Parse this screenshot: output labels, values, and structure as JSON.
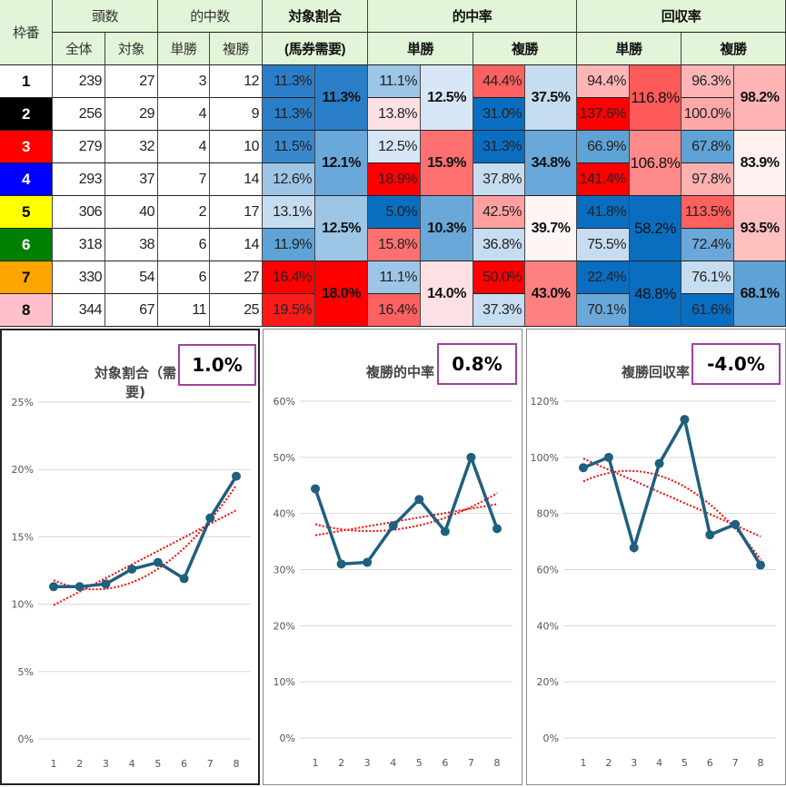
{
  "header": {
    "waku": "枠番",
    "tousu": "頭数",
    "zentai": "全体",
    "taisho": "対象",
    "tekichu_su": "的中数",
    "tan": "単勝",
    "fuku": "複勝",
    "taisho_wariai": "対象割合",
    "baken_juyo": "(馬券需要)",
    "tekichu_ritsu": "的中率",
    "kaishu_ritsu": "回収率"
  },
  "rows": [
    {
      "waku": "1",
      "bg": "#ffffff",
      "fg": "#000000",
      "zentai": "239",
      "taisho": "27",
      "tan_hit": "3",
      "fuku_hit": "12",
      "share": "11.3%",
      "tan_rate": "11.1%",
      "fuku_rate": "44.4%",
      "tan_ret": "94.4%",
      "fuku_ret": "96.3%"
    },
    {
      "waku": "2",
      "bg": "#000000",
      "fg": "#ffffff",
      "zentai": "256",
      "taisho": "29",
      "tan_hit": "4",
      "fuku_hit": "9",
      "share": "11.3%",
      "tan_rate": "13.8%",
      "fuku_rate": "31.0%",
      "tan_ret": "137.6%",
      "fuku_ret": "100.0%"
    },
    {
      "waku": "3",
      "bg": "#ff0000",
      "fg": "#ffffff",
      "zentai": "279",
      "taisho": "32",
      "tan_hit": "4",
      "fuku_hit": "10",
      "share": "11.5%",
      "tan_rate": "12.5%",
      "fuku_rate": "31.3%",
      "tan_ret": "66.9%",
      "fuku_ret": "67.8%"
    },
    {
      "waku": "4",
      "bg": "#0000ff",
      "fg": "#ffffff",
      "zentai": "293",
      "taisho": "37",
      "tan_hit": "7",
      "fuku_hit": "14",
      "share": "12.6%",
      "tan_rate": "18.9%",
      "fuku_rate": "37.8%",
      "tan_ret": "141.4%",
      "fuku_ret": "97.8%"
    },
    {
      "waku": "5",
      "bg": "#ffff00",
      "fg": "#000000",
      "zentai": "306",
      "taisho": "40",
      "tan_hit": "2",
      "fuku_hit": "17",
      "share": "13.1%",
      "tan_rate": "5.0%",
      "fuku_rate": "42.5%",
      "tan_ret": "41.8%",
      "fuku_ret": "113.5%"
    },
    {
      "waku": "6",
      "bg": "#008000",
      "fg": "#ffffff",
      "zentai": "318",
      "taisho": "38",
      "tan_hit": "6",
      "fuku_hit": "14",
      "share": "11.9%",
      "tan_rate": "15.8%",
      "fuku_rate": "36.8%",
      "tan_ret": "75.5%",
      "fuku_ret": "72.4%"
    },
    {
      "waku": "7",
      "bg": "#ffa500",
      "fg": "#000000",
      "zentai": "330",
      "taisho": "54",
      "tan_hit": "6",
      "fuku_hit": "27",
      "share": "16.4%",
      "tan_rate": "11.1%",
      "fuku_rate": "50.0%",
      "tan_ret": "22.4%",
      "fuku_ret": "76.1%"
    },
    {
      "waku": "8",
      "bg": "#ffc0cb",
      "fg": "#000000",
      "zentai": "344",
      "taisho": "67",
      "tan_hit": "11",
      "fuku_hit": "25",
      "share": "19.5%",
      "tan_rate": "16.4%",
      "fuku_rate": "37.3%",
      "tan_ret": "70.1%",
      "fuku_ret": "61.6%"
    }
  ],
  "pairs": [
    {
      "share": "11.3%",
      "tan_rate": "12.5%",
      "fuku_rate": "37.5%",
      "tan_ret": "116.8%",
      "fuku_ret": "98.2%"
    },
    {
      "share": "12.1%",
      "tan_rate": "15.9%",
      "fuku_rate": "34.8%",
      "tan_ret": "106.8%",
      "fuku_ret": "83.9%"
    },
    {
      "share": "12.5%",
      "tan_rate": "10.3%",
      "fuku_rate": "39.7%",
      "tan_ret": "58.2%",
      "fuku_ret": "93.5%"
    },
    {
      "share": "18.0%",
      "tan_rate": "14.0%",
      "fuku_rate": "43.0%",
      "tan_ret": "48.8%",
      "fuku_ret": "68.1%"
    }
  ],
  "colors": {
    "cells": {
      "share": [
        "#2a7ec8",
        "#2a7ec8",
        "#3a88cc",
        "#9cc5e6",
        "#c6dcf0",
        "#5ea2d6",
        "#ff0000",
        "#ff1a1a"
      ],
      "tan_rate": [
        "#9cc5e6",
        "#fde0e3",
        "#d6e6f5",
        "#ff0000",
        "#0a6ec0",
        "#ff7070",
        "#9cc5e6",
        "#ff6060"
      ],
      "fuku_rate": [
        "#ff6060",
        "#0a6ec0",
        "#0a6ec0",
        "#c6dcf0",
        "#ffa0a0",
        "#c6dcf0",
        "#ff0000",
        "#c6dcf0"
      ],
      "tan_ret": [
        "#ffb5b5",
        "#ff0000",
        "#5ea2d6",
        "#ff0000",
        "#0a6ec0",
        "#c6dcf0",
        "#0a6ec0",
        "#6aa8da"
      ],
      "fuku_ret": [
        "#ffb5b5",
        "#ffa8a8",
        "#5ea2d6",
        "#ffb0b0",
        "#ff6060",
        "#6aa8da",
        "#c6dcf0",
        "#0a6ec0"
      ]
    },
    "pairs": {
      "share": [
        "#2a7ec8",
        "#6aa8da",
        "#9cc5e6",
        "#ff0000"
      ],
      "tan_rate": [
        "#d6e6f5",
        "#ff7070",
        "#6aa8da",
        "#fde0e3"
      ],
      "fuku_rate": [
        "#c6dcf0",
        "#6aa8da",
        "#fff5f5",
        "#ff8080"
      ],
      "tan_ret": [
        "#ff5a5a",
        "#ff8a8a",
        "#0a6ec0",
        "#0a6ec0"
      ],
      "fuku_ret": [
        "#ffb5b5",
        "#fff0f0",
        "#ffc0c0",
        "#5ea2d6"
      ]
    },
    "line": "#1f5f7f",
    "trend": "#ff0000",
    "badge_border": "#a040a0"
  },
  "chart_data": [
    {
      "type": "line",
      "title": "対象割合（需要)",
      "badge": "1.0%",
      "categories": [
        "1",
        "2",
        "3",
        "4",
        "5",
        "6",
        "7",
        "8"
      ],
      "values": [
        11.3,
        11.3,
        11.5,
        12.6,
        13.1,
        11.9,
        16.4,
        19.5
      ],
      "ylim": [
        0,
        25
      ],
      "yticks": [
        "0%",
        "5%",
        "10%",
        "15%",
        "20%",
        "25%"
      ],
      "trendlines": [
        "linear",
        "polynomial"
      ],
      "grid": true
    },
    {
      "type": "line",
      "title": "複勝的中率",
      "badge": "0.8%",
      "categories": [
        "1",
        "2",
        "3",
        "4",
        "5",
        "6",
        "7",
        "8"
      ],
      "values": [
        44.4,
        31.0,
        31.3,
        37.8,
        42.5,
        36.8,
        50.0,
        37.3
      ],
      "ylim": [
        0,
        60
      ],
      "yticks": [
        "0%",
        "10%",
        "20%",
        "30%",
        "40%",
        "50%",
        "60%"
      ],
      "trendlines": [
        "linear",
        "polynomial"
      ],
      "grid": true
    },
    {
      "type": "line",
      "title": "複勝回収率",
      "badge": "-4.0%",
      "categories": [
        "1",
        "2",
        "3",
        "4",
        "5",
        "6",
        "7",
        "8"
      ],
      "values": [
        96.3,
        100.0,
        67.8,
        97.8,
        113.5,
        72.4,
        76.1,
        61.6
      ],
      "ylim": [
        0,
        120
      ],
      "yticks": [
        "0%",
        "20%",
        "40%",
        "60%",
        "80%",
        "100%",
        "120%"
      ],
      "trendlines": [
        "linear",
        "polynomial"
      ],
      "grid": true
    }
  ]
}
